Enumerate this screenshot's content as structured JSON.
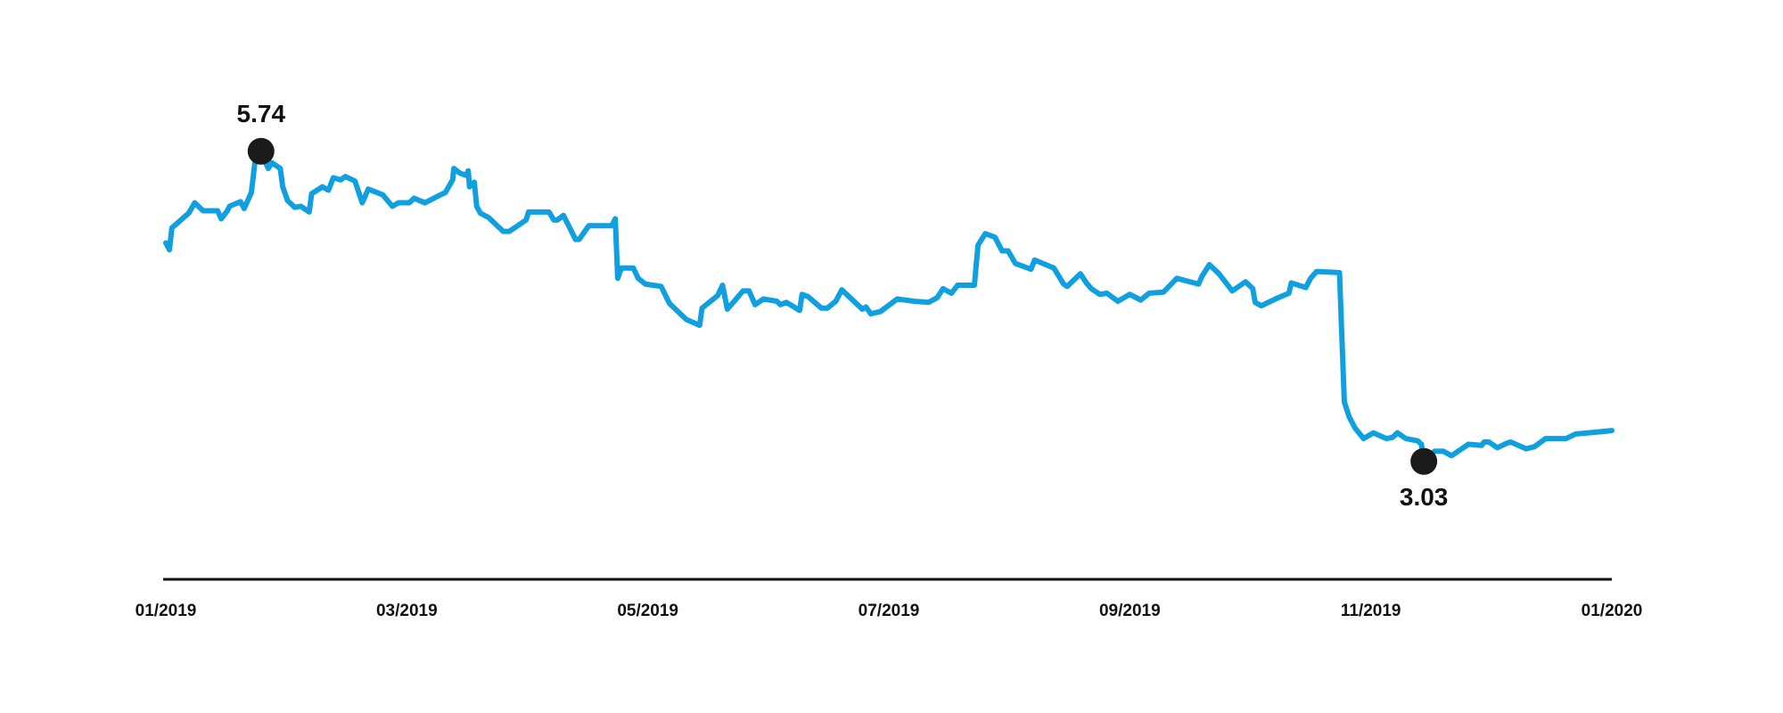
{
  "chart_data": {
    "type": "line",
    "color": "#11a0df",
    "marker_color": "#1a1a1a",
    "xlim": [
      0,
      12
    ],
    "xticks": [
      {
        "value": 0,
        "label": "01/2019"
      },
      {
        "value": 2,
        "label": "03/2019"
      },
      {
        "value": 4,
        "label": "05/2019"
      },
      {
        "value": 6,
        "label": "07/2019"
      },
      {
        "value": 8,
        "label": "09/2019"
      },
      {
        "value": 10,
        "label": "11/2019"
      },
      {
        "value": 12,
        "label": "01/2020"
      }
    ],
    "ylim": [
      2,
      7
    ],
    "annotations": [
      {
        "label": "5.74",
        "x": 0.79,
        "y": 5.74
      },
      {
        "label": "3.03",
        "x": 10.44,
        "y": 3.03
      }
    ],
    "x": [
      0,
      0.03,
      0.05,
      0.19,
      0.24,
      0.31,
      0.43,
      0.46,
      0.51,
      0.53,
      0.62,
      0.65,
      0.71,
      0.74,
      0.79,
      0.85,
      0.88,
      0.95,
      0.97,
      1.01,
      1.07,
      1.12,
      1.19,
      1.21,
      1.3,
      1.35,
      1.39,
      1.45,
      1.49,
      1.57,
      1.63,
      1.68,
      1.8,
      1.88,
      1.93,
      2.02,
      2.06,
      2.15,
      2.28,
      2.32,
      2.38,
      2.39,
      2.44,
      2.49,
      2.51,
      2.52,
      2.56,
      2.58,
      2.61,
      2.68,
      2.8,
      2.85,
      2.99,
      3.01,
      3.18,
      3.22,
      3.25,
      3.3,
      3.4,
      3.43,
      3.51,
      3.7,
      3.73,
      3.75,
      3.78,
      3.88,
      3.92,
      3.98,
      4.11,
      4.18,
      4.25,
      4.32,
      4.43,
      4.45,
      4.58,
      4.62,
      4.66,
      4.79,
      4.84,
      4.89,
      4.96,
      5.07,
      5.1,
      5.15,
      5.26,
      5.28,
      5.33,
      5.44,
      5.49,
      5.56,
      5.61,
      5.78,
      5.81,
      5.85,
      5.93,
      6.07,
      6.21,
      6.33,
      6.4,
      6.45,
      6.52,
      6.57,
      6.71,
      6.74,
      6.8,
      6.88,
      6.94,
      6.99,
      7.05,
      7.18,
      7.21,
      7.37,
      7.45,
      7.48,
      7.59,
      7.64,
      7.68,
      7.75,
      7.81,
      7.9,
      8,
      8.09,
      8.16,
      8.28,
      8.39,
      8.57,
      8.6,
      8.66,
      8.74,
      8.85,
      8.96,
      9.02,
      9.04,
      9.09,
      9.23,
      9.32,
      9.34,
      9.46,
      9.5,
      9.55,
      9.74,
      9.78,
      9.82,
      9.87,
      9.94,
      10.02,
      10.13,
      10.18,
      10.22,
      10.29,
      10.39,
      10.42,
      10.44,
      10.53,
      10.6,
      10.67,
      10.81,
      10.92,
      10.94,
      10.98,
      11.05,
      11.13,
      11.16,
      11.29,
      11.36,
      11.45,
      11.62,
      11.7,
      11.81,
      12
    ],
    "values": [
      4.94,
      4.88,
      5.07,
      5.2,
      5.29,
      5.22,
      5.22,
      5.15,
      5.22,
      5.26,
      5.3,
      5.24,
      5.38,
      5.65,
      5.74,
      5.59,
      5.64,
      5.59,
      5.43,
      5.31,
      5.25,
      5.26,
      5.21,
      5.37,
      5.43,
      5.4,
      5.51,
      5.49,
      5.52,
      5.48,
      5.29,
      5.41,
      5.36,
      5.26,
      5.29,
      5.29,
      5.33,
      5.29,
      5.36,
      5.38,
      5.49,
      5.59,
      5.55,
      5.53,
      5.57,
      5.43,
      5.47,
      5.26,
      5.2,
      5.16,
      5.04,
      5.04,
      5.14,
      5.21,
      5.21,
      5.14,
      5.14,
      5.18,
      4.97,
      4.97,
      5.09,
      5.09,
      5.15,
      4.63,
      4.72,
      4.72,
      4.63,
      4.58,
      4.56,
      4.41,
      4.34,
      4.27,
      4.22,
      4.37,
      4.48,
      4.57,
      4.36,
      4.52,
      4.52,
      4.4,
      4.45,
      4.43,
      4.4,
      4.42,
      4.35,
      4.49,
      4.47,
      4.37,
      4.37,
      4.43,
      4.53,
      4.36,
      4.38,
      4.32,
      4.34,
      4.45,
      4.43,
      4.42,
      4.46,
      4.54,
      4.5,
      4.57,
      4.57,
      4.92,
      5.02,
      4.99,
      4.87,
      4.87,
      4.76,
      4.71,
      4.79,
      4.72,
      4.58,
      4.56,
      4.67,
      4.59,
      4.54,
      4.49,
      4.5,
      4.43,
      4.49,
      4.44,
      4.5,
      4.51,
      4.63,
      4.58,
      4.65,
      4.75,
      4.67,
      4.52,
      4.6,
      4.54,
      4.42,
      4.39,
      4.46,
      4.5,
      4.59,
      4.55,
      4.63,
      4.69,
      4.68,
      3.55,
      3.42,
      3.32,
      3.23,
      3.28,
      3.23,
      3.24,
      3.28,
      3.23,
      3.21,
      3.18,
      3.03,
      3.12,
      3.12,
      3.08,
      3.18,
      3.17,
      3.2,
      3.2,
      3.15,
      3.19,
      3.2,
      3.14,
      3.16,
      3.23,
      3.23,
      3.27,
      3.28,
      3.3
    ]
  }
}
